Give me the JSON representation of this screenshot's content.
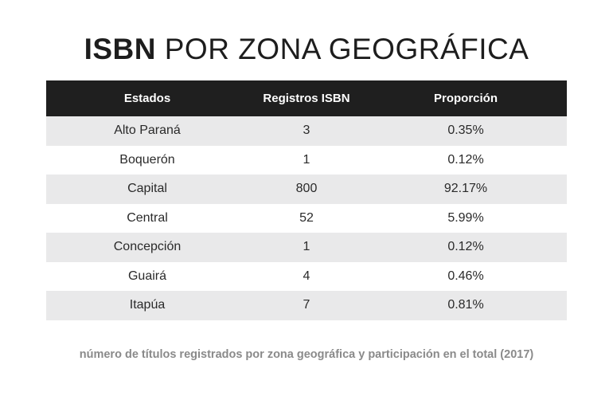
{
  "title": {
    "bold": "ISBN",
    "light": "POR ZONA GEOGRÁFICA"
  },
  "caption": "número de títulos registrados por zona geográfica y participación en el total (2017)",
  "colors": {
    "header_bg": "#1f1f1f",
    "header_text": "#ffffff",
    "row_shade": "#e9e9ea",
    "caption": "#8a8a8a"
  },
  "chart_data": {
    "type": "table",
    "title": "ISBN POR ZONA GEOGRÁFICA",
    "columns": [
      "Estados",
      "Registros ISBN",
      "Proporción"
    ],
    "rows": [
      [
        "Alto Paraná",
        "3",
        "0.35%"
      ],
      [
        "Boquerón",
        "1",
        "0.12%"
      ],
      [
        "Capital",
        "800",
        "92.17%"
      ],
      [
        "Central",
        "52",
        "5.99%"
      ],
      [
        "Concepción",
        "1",
        "0.12%"
      ],
      [
        "Guairá",
        "4",
        "0.46%"
      ],
      [
        "Itapúa",
        "7",
        "0.81%"
      ]
    ]
  }
}
